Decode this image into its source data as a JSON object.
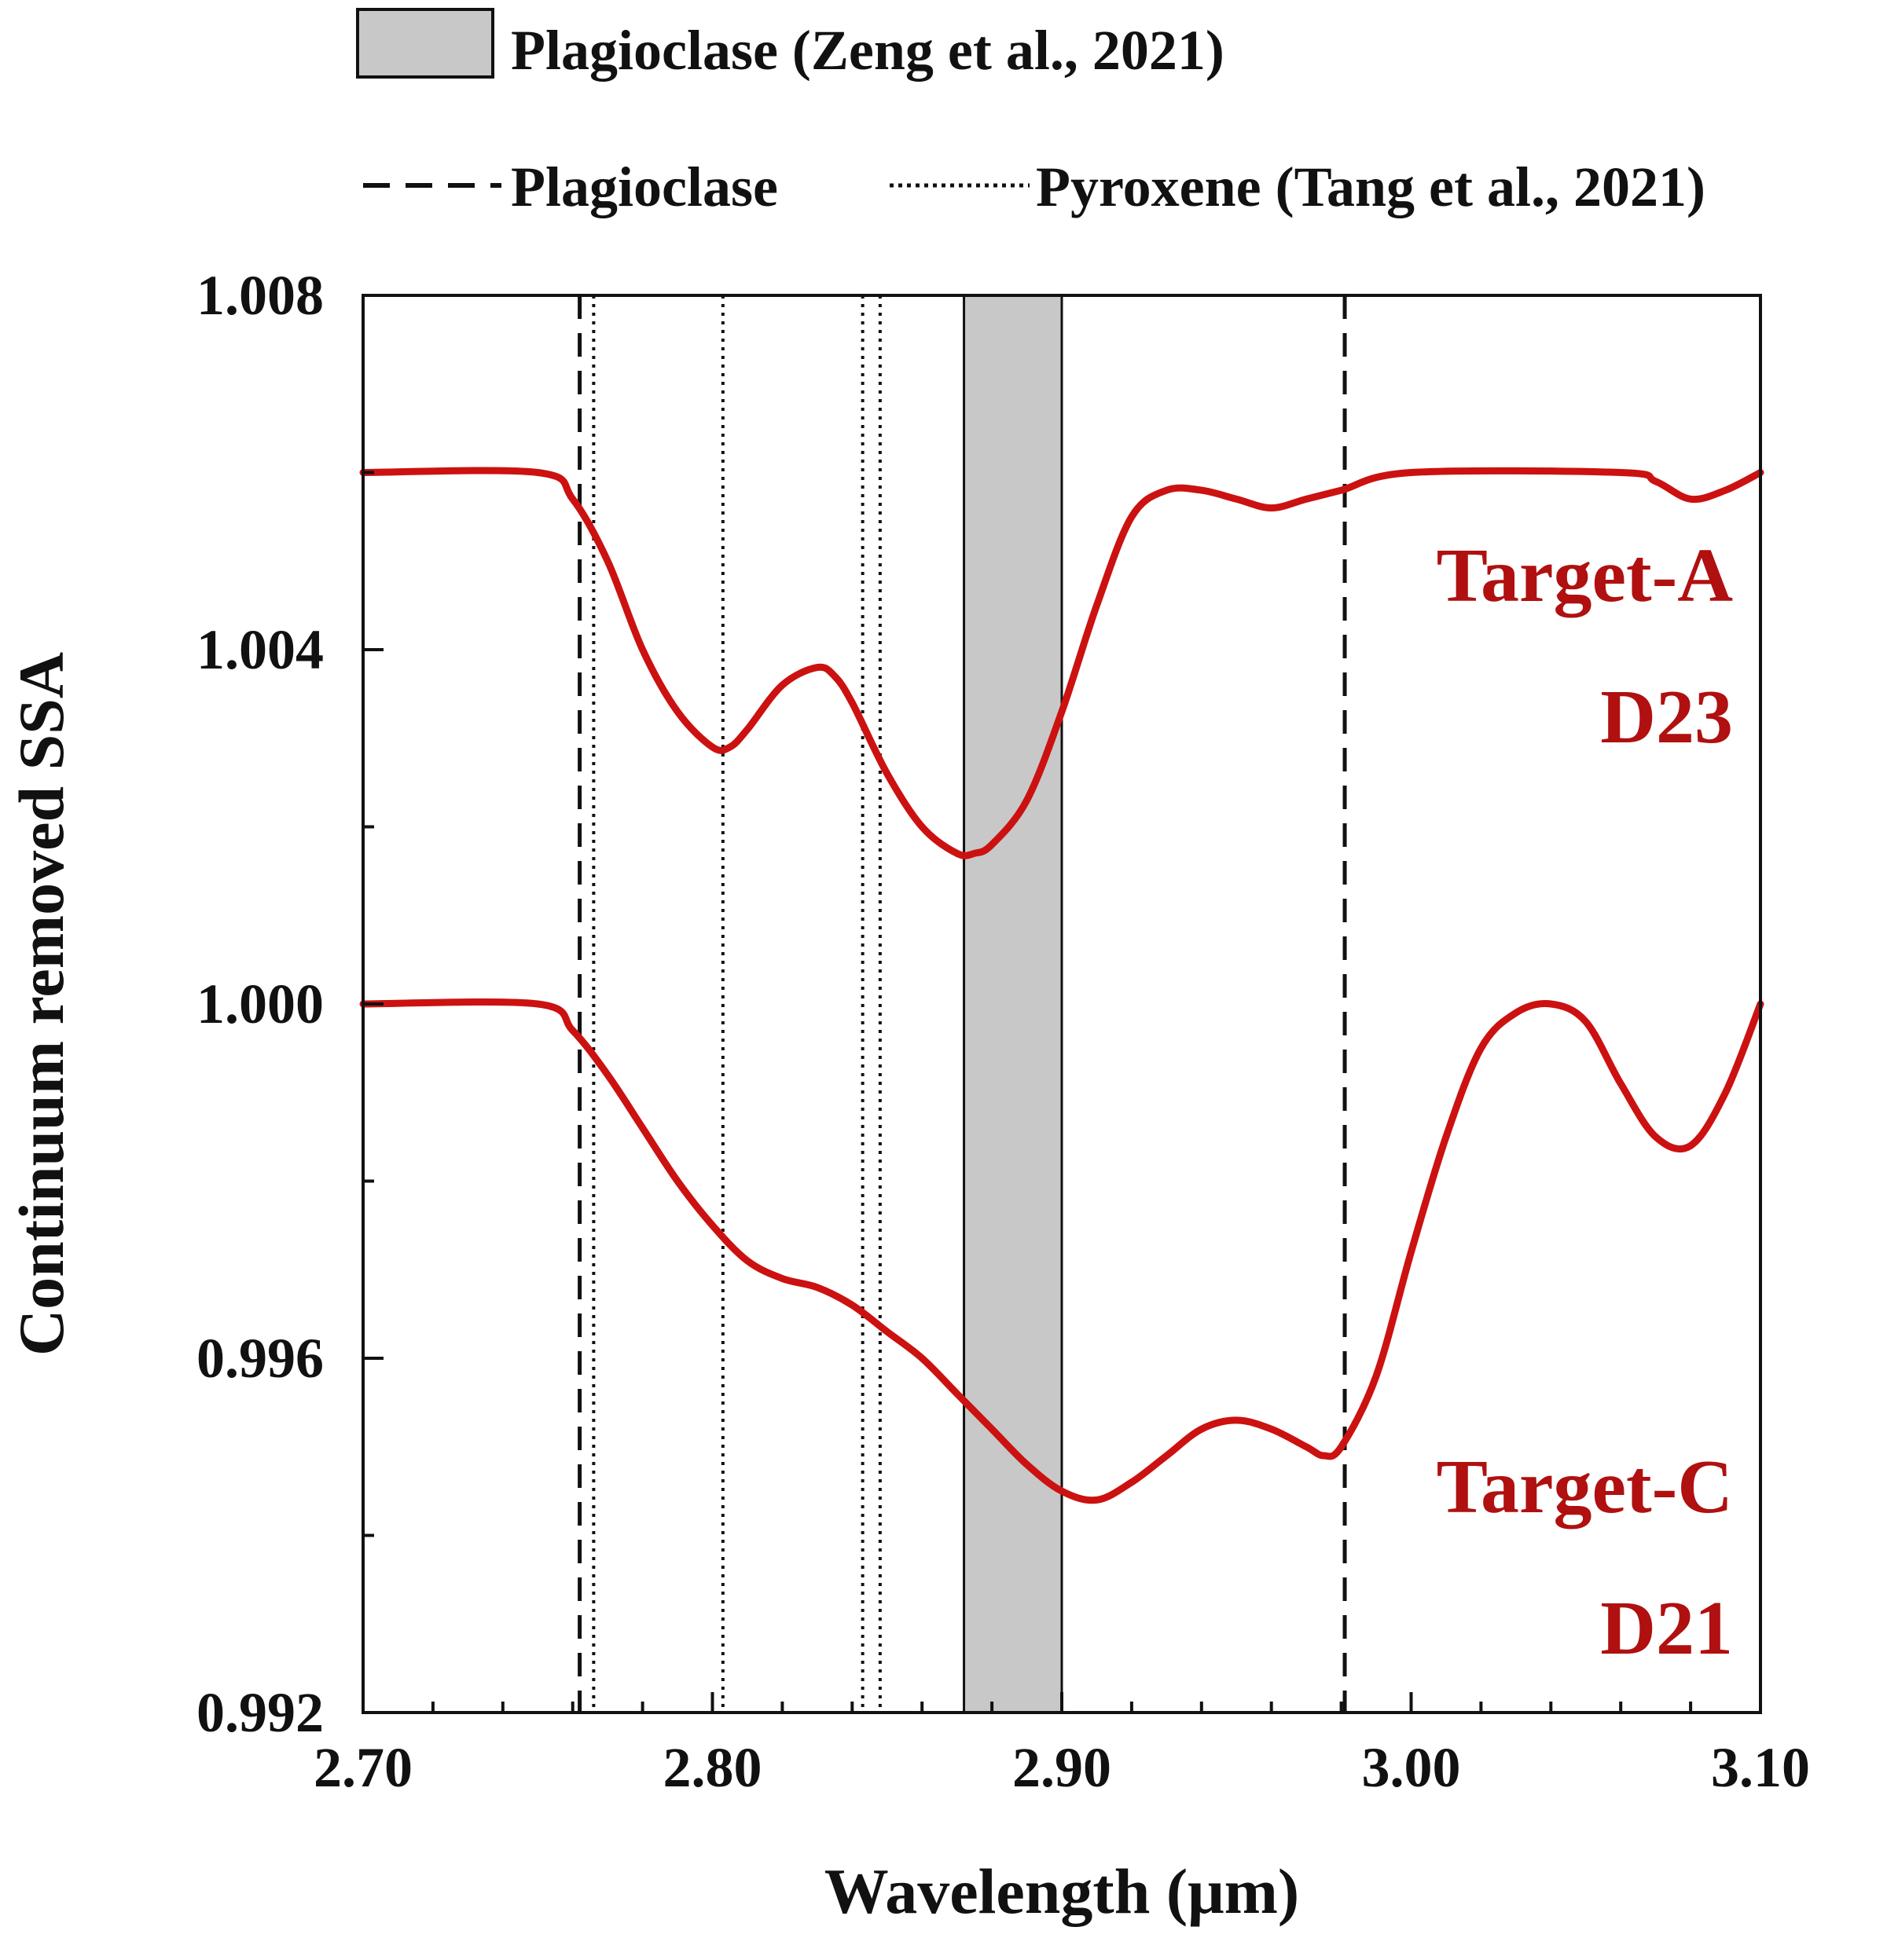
{
  "chart_data": {
    "type": "line",
    "xlabel": "Wavelength (μm)",
    "ylabel": "Continuum removed SSA",
    "xlim": [
      2.7,
      3.1
    ],
    "ylim": [
      0.992,
      1.008
    ],
    "x_ticks": [
      "2.70",
      "2.80",
      "2.90",
      "3.00",
      "3.10"
    ],
    "y_ticks": [
      "0.992",
      "0.996",
      "1.000",
      "1.004",
      "1.008"
    ],
    "x_minor_step": 0.02,
    "y_minor_step": 0.002,
    "grid": false,
    "legend_placement": "top",
    "legend": {
      "shaded_label": "Plagioclase (Zeng et al., 2021)",
      "dashed_label": "Plagioclase",
      "dotted_label": "Pyroxene (Tang et al., 2021)"
    },
    "shaded_band": {
      "x": [
        2.872,
        2.9
      ],
      "fill": "#c8c8c8"
    },
    "dashed_lines": [
      2.762,
      2.981
    ],
    "dotted_lines": [
      2.766,
      2.803,
      2.843,
      2.848
    ],
    "series_color": "#cc1111",
    "label_color": "#b01010",
    "series": [
      {
        "name_lines": [
          "Target-A",
          "D23"
        ],
        "x": [
          2.7,
          2.75,
          2.76,
          2.77,
          2.78,
          2.79,
          2.8,
          2.805,
          2.81,
          2.82,
          2.83,
          2.835,
          2.84,
          2.85,
          2.86,
          2.87,
          2.875,
          2.88,
          2.89,
          2.9,
          2.91,
          2.92,
          2.93,
          2.94,
          2.95,
          2.96,
          2.97,
          2.98,
          3.0,
          3.06,
          3.07,
          3.08,
          3.09,
          3.1
        ],
        "y": [
          1.006,
          1.006,
          1.0057,
          1.005,
          1.004,
          1.0033,
          1.0029,
          1.0029,
          1.0031,
          1.0036,
          1.0038,
          1.0037,
          1.0034,
          1.0026,
          1.002,
          1.0017,
          1.0017,
          1.0018,
          1.0023,
          1.0033,
          1.0045,
          1.0055,
          1.0058,
          1.0058,
          1.0057,
          1.0056,
          1.0057,
          1.0058,
          1.006,
          1.006,
          1.0059,
          1.0057,
          1.0058,
          1.006
        ]
      },
      {
        "name_lines": [
          "Target-C",
          "D21"
        ],
        "x": [
          2.7,
          2.75,
          2.76,
          2.77,
          2.78,
          2.79,
          2.8,
          2.81,
          2.82,
          2.83,
          2.84,
          2.85,
          2.86,
          2.87,
          2.88,
          2.89,
          2.9,
          2.91,
          2.92,
          2.93,
          2.94,
          2.95,
          2.96,
          2.97,
          2.975,
          2.98,
          2.99,
          3.0,
          3.01,
          3.02,
          3.03,
          3.04,
          3.05,
          3.06,
          3.07,
          3.08,
          3.09,
          3.1
        ],
        "y": [
          1.0,
          1.0,
          0.9997,
          0.9992,
          0.9986,
          0.998,
          0.9975,
          0.9971,
          0.9969,
          0.9968,
          0.9966,
          0.9963,
          0.996,
          0.9956,
          0.9952,
          0.9948,
          0.9945,
          0.9944,
          0.9946,
          0.9949,
          0.9952,
          0.9953,
          0.9952,
          0.995,
          0.9949,
          0.995,
          0.9958,
          0.9972,
          0.9985,
          0.9995,
          0.9999,
          1.0,
          0.9998,
          0.9991,
          0.9985,
          0.9984,
          0.999,
          1.0
        ]
      }
    ]
  }
}
